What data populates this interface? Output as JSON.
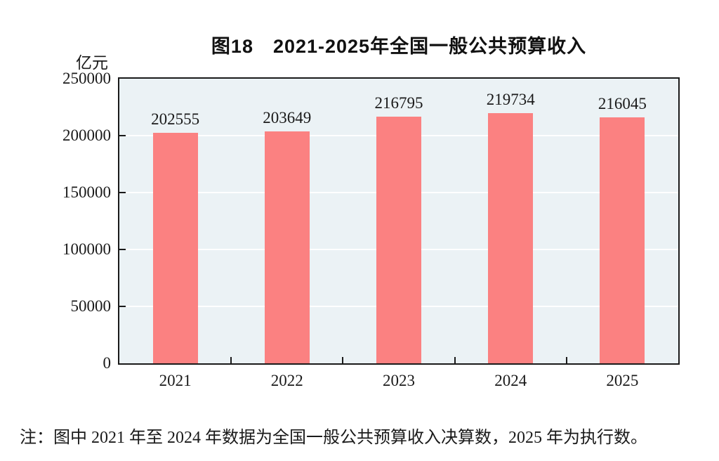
{
  "title": "图18　2021-2025年全国一般公共预算收入",
  "unit_label": "亿元",
  "note": "注：图中 2021 年至 2024 年数据为全国一般公共预算收入决算数，2025 年为执行数。",
  "colors": {
    "bar": "#fb8181",
    "plot_background": "#ebf2f5",
    "gridline": "#fafdfd",
    "axis": "#1a1a1a"
  },
  "chart_data": {
    "type": "bar",
    "title": "图18　2021-2025年全国一般公共预算收入",
    "categories": [
      "2021",
      "2022",
      "2023",
      "2024",
      "2025"
    ],
    "values": [
      202555,
      203649,
      216795,
      219734,
      216045
    ],
    "value_labels_shown": true,
    "xlabel": "",
    "ylabel": "亿元",
    "ylim": [
      0,
      250000
    ],
    "yticks": [
      0,
      50000,
      100000,
      150000,
      200000,
      250000
    ],
    "grid": true,
    "legend": "none",
    "note": "注：图中 2021 年至 2024 年数据为全国一般公共预算收入决算数，2025 年为执行数。"
  }
}
